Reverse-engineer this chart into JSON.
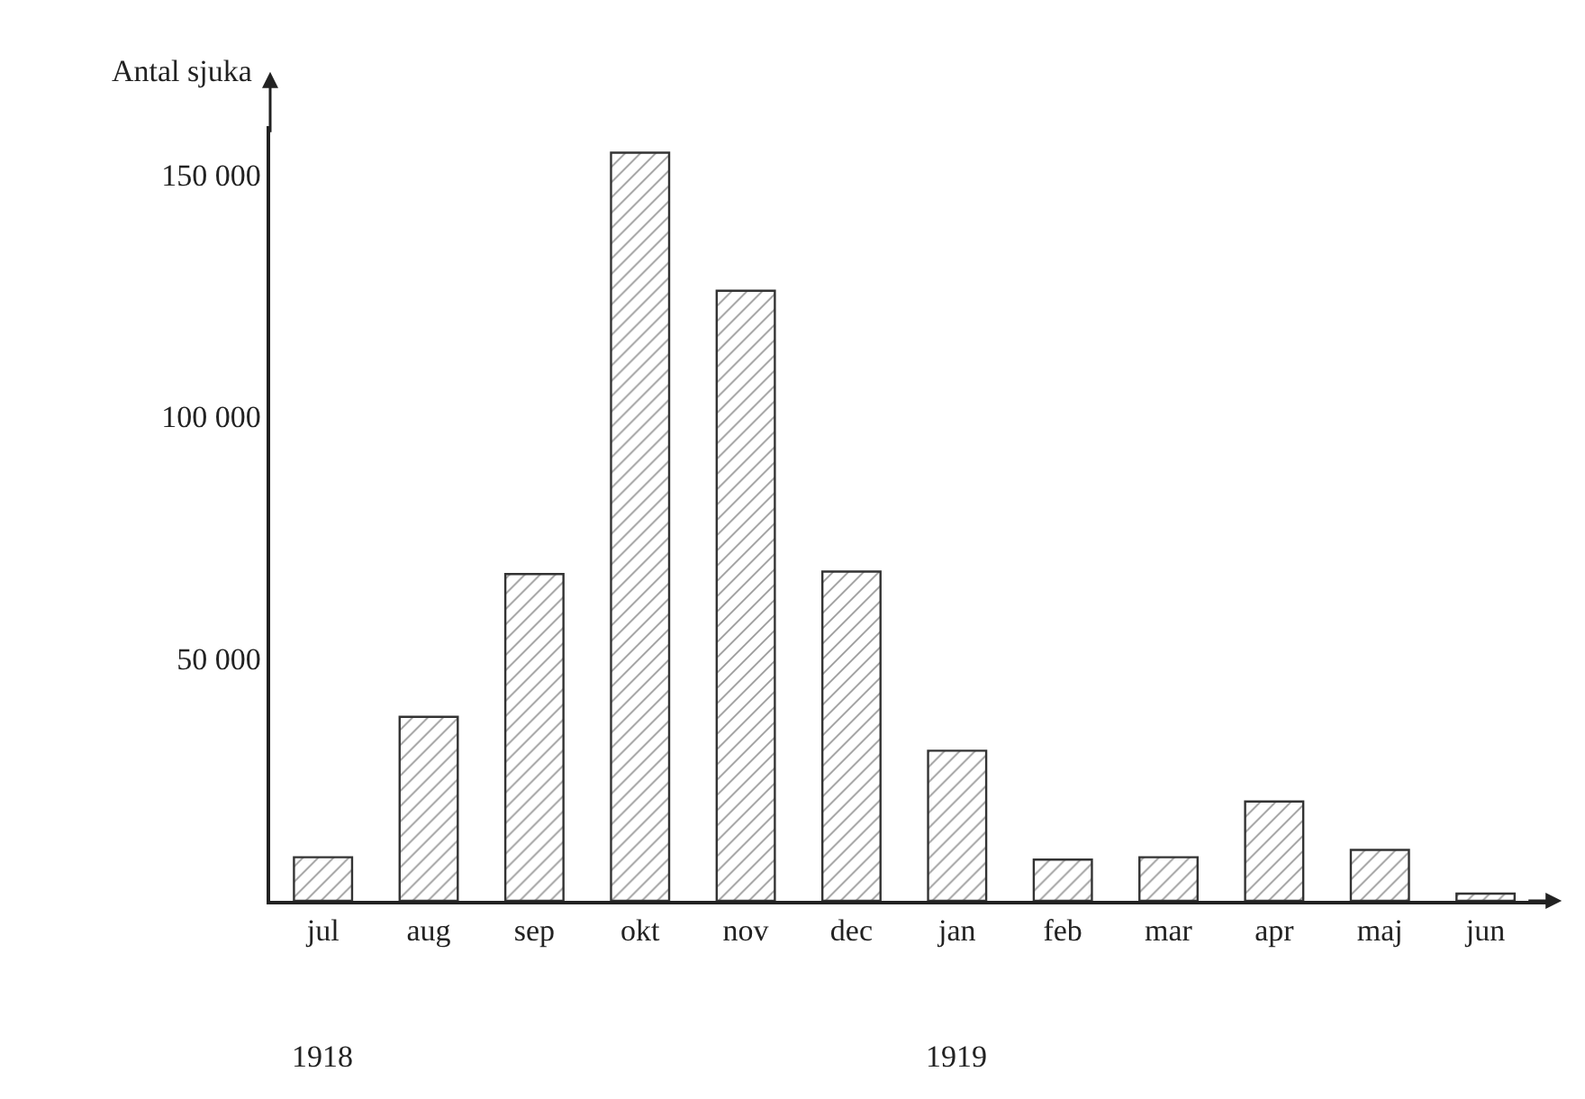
{
  "chart_data": {
    "type": "bar",
    "ylabel": "Antal sjuka",
    "categories": [
      "jul",
      "aug",
      "sep",
      "okt",
      "nov",
      "dec",
      "jan",
      "feb",
      "mar",
      "apr",
      "maj",
      "jun"
    ],
    "values": [
      9000,
      38000,
      67500,
      154500,
      126000,
      68000,
      31000,
      8500,
      9000,
      20500,
      10500,
      1500
    ],
    "color": "#333333",
    "ylim": [
      0,
      160000
    ],
    "yticks": [
      {
        "value": 50000,
        "label": "50 000"
      },
      {
        "value": 100000,
        "label": "100 000"
      },
      {
        "value": 150000,
        "label": "150 000"
      }
    ],
    "annotations": [
      "1918",
      "1919"
    ]
  }
}
